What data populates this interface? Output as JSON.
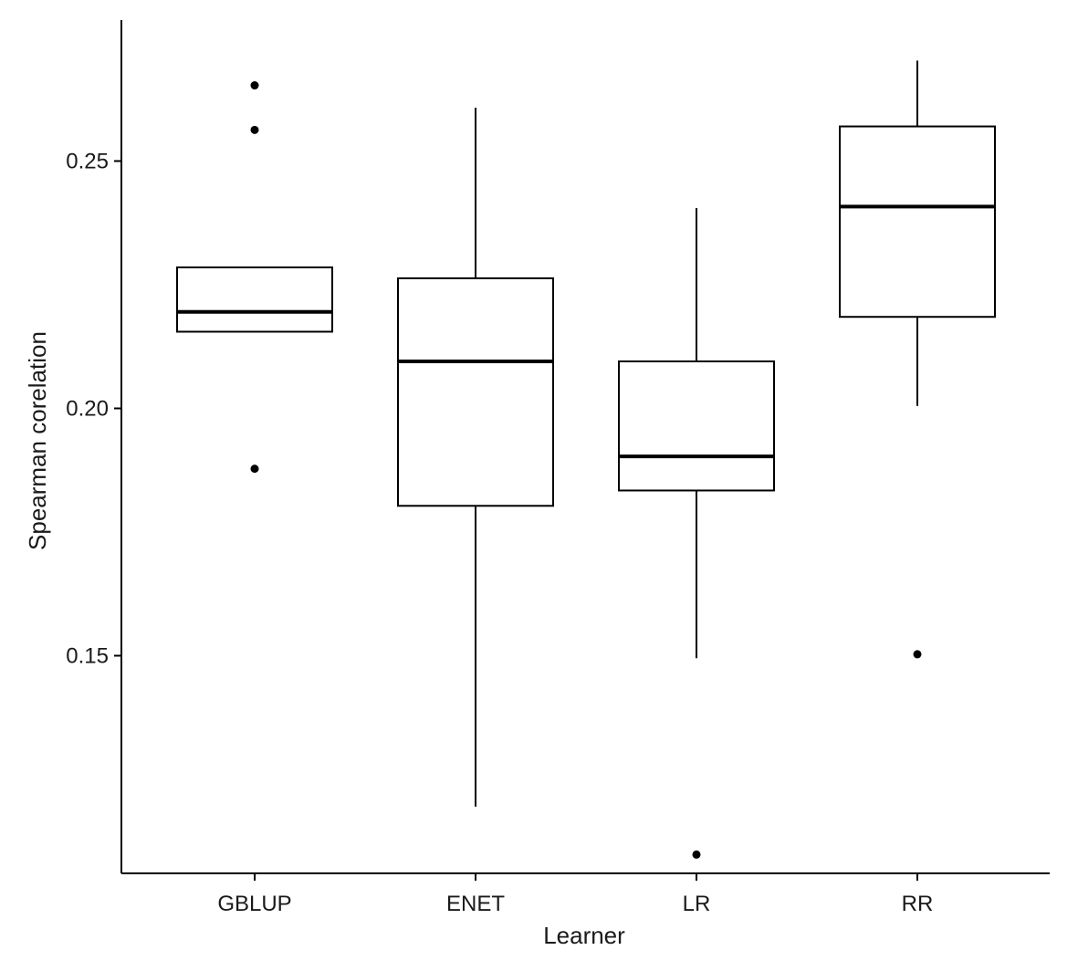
{
  "chart_data": {
    "type": "boxplot",
    "xlabel": "Learner",
    "ylabel": "Spearman corelation",
    "ylim": [
      0.106,
      0.2785
    ],
    "yticks": [
      0.15,
      0.2,
      0.25
    ],
    "ytick_labels": [
      "0.15",
      "0.20",
      "0.25"
    ],
    "grid": false,
    "categories": [
      "GBLUP",
      "ENET",
      "LR",
      "RR"
    ],
    "boxes": [
      {
        "category": "GBLUP",
        "q1": 0.2155,
        "median": 0.2195,
        "q3": 0.2285,
        "whisker_low": 0.2155,
        "whisker_high": 0.2285,
        "outliers": [
          0.2653,
          0.2563,
          0.1878
        ]
      },
      {
        "category": "ENET",
        "q1": 0.1803,
        "median": 0.2095,
        "q3": 0.2263,
        "whisker_low": 0.1195,
        "whisker_high": 0.2608,
        "outliers": []
      },
      {
        "category": "LR",
        "q1": 0.1834,
        "median": 0.1903,
        "q3": 0.2095,
        "whisker_low": 0.1495,
        "whisker_high": 0.2405,
        "outliers": [
          0.1098
        ]
      },
      {
        "category": "RR",
        "q1": 0.2185,
        "median": 0.2408,
        "q3": 0.257,
        "whisker_low": 0.2005,
        "whisker_high": 0.2703,
        "outliers": [
          0.1503
        ]
      }
    ]
  }
}
